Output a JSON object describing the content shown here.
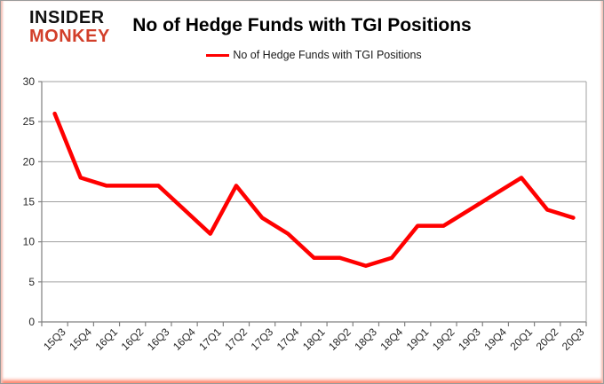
{
  "logo": {
    "line1": "INSIDER",
    "line2": "MONKEY"
  },
  "header": {
    "title": "No of Hedge Funds with TGI Positions"
  },
  "legend": {
    "label": "No of Hedge Funds with TGI Positions"
  },
  "chart_data": {
    "type": "line",
    "title": "No of Hedge Funds with TGI Positions",
    "categories": [
      "15Q3",
      "15Q4",
      "16Q1",
      "16Q2",
      "16Q3",
      "16Q4",
      "17Q1",
      "17Q2",
      "17Q3",
      "17Q4",
      "18Q1",
      "18Q2",
      "18Q3",
      "18Q4",
      "19Q1",
      "19Q2",
      "19Q3",
      "19Q4",
      "20Q1",
      "20Q2",
      "20Q3"
    ],
    "series": [
      {
        "name": "No of Hedge Funds with TGI Positions",
        "color": "#ff0000",
        "values": [
          26,
          18,
          17,
          17,
          17,
          14,
          11,
          17,
          13,
          11,
          8,
          8,
          7,
          8,
          12,
          12,
          14,
          16,
          18,
          14,
          13
        ]
      }
    ],
    "xlabel": "",
    "ylabel": "",
    "ylim": [
      0,
      30
    ],
    "yticks": [
      0,
      5,
      10,
      15,
      20,
      25,
      30
    ],
    "grid": true,
    "legend_position": "top-center"
  },
  "colors": {
    "line": "#ff0000",
    "gridline": "#a0a0a0",
    "axis": "#808080",
    "tick_label": "#262626",
    "title": "#000000",
    "logo_top": "#111111",
    "logo_bottom": "#d23f2a"
  }
}
